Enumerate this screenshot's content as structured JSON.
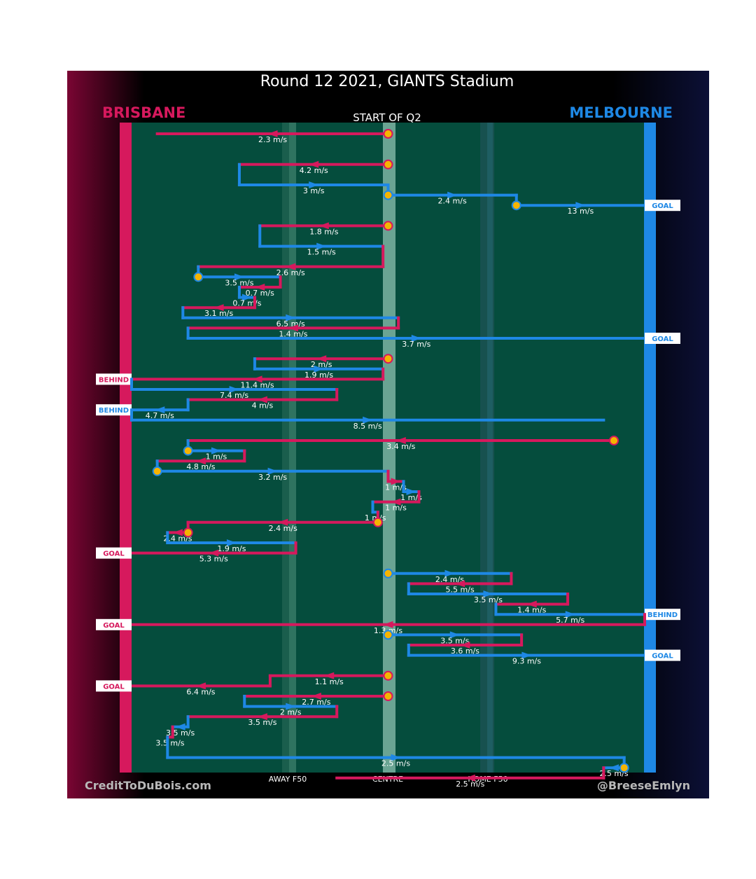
{
  "chart_data": {
    "type": "line",
    "title": "Round 12 2021, GIANTS Stadium",
    "subtitle": "START OF Q2",
    "teams": {
      "left": {
        "name": "BRISBANE",
        "color": "#d6195d"
      },
      "right": {
        "name": "MELBOURNE",
        "color": "#1e88e5"
      }
    },
    "field_labels": [
      "AWAY F50",
      "CENTRE",
      "HOME F50"
    ],
    "credits": {
      "left": "CreditToDuBois.com",
      "right": "@BreeseEmlyn"
    },
    "x_axis": {
      "note": "field position, 0 = Brisbane goal, 100 = Melbourne goal",
      "range": [
        0,
        100
      ]
    },
    "y_axis": {
      "note": "sequence step (row index, top to bottom)"
    },
    "speed_labels": [
      "2.3 m/s",
      "4.2 m/s",
      "3 m/s",
      "2.4 m/s",
      "13 m/s",
      "1.8 m/s",
      "1.5 m/s",
      "2.6 m/s",
      "3.5 m/s",
      "0.7 m/s",
      "3.1 m/s",
      "6.5 m/s",
      "1.4 m/s",
      "3.7 m/s",
      "2 m/s",
      "1.9 m/s",
      "11.4 m/s",
      "7.4 m/s",
      "4 m/s",
      "4.7 m/s",
      "8.5 m/s",
      "3.4 m/s",
      "1 m/s",
      "4.8 m/s",
      "3.2 m/s",
      "1 m/s",
      "2.4 m/s",
      "1.9 m/s",
      "5.3 m/s",
      "2.4 m/s",
      "5.5 m/s",
      "3.5 m/s",
      "1.4 m/s",
      "5.7 m/s",
      "1.3 m/s",
      "3.5 m/s",
      "3.6 m/s",
      "9.3 m/s",
      "1.1 m/s",
      "6.4 m/s",
      "2.7 m/s",
      "2 m/s",
      "3.5 m/s",
      "2.5 m/s",
      "2.5 m/s"
    ],
    "segments": [
      {
        "team": "BRI",
        "x1": 50,
        "x2": 5,
        "row": 1,
        "speed": "2.3 m/s",
        "start": "centre"
      },
      {
        "team": "BRI",
        "x1": 50,
        "x2": 21,
        "row": 4,
        "speed": "4.2 m/s",
        "bounce": true
      },
      {
        "team": "MEL",
        "x1": 21,
        "x2": 50,
        "row": 6,
        "speed": "3 m/s"
      },
      {
        "team": "MEL",
        "x1": 50,
        "x2": 75,
        "row": 7,
        "speed": "2.4 m/s",
        "bounce": true
      },
      {
        "team": "MEL",
        "x1": 75,
        "x2": 100,
        "row": 8,
        "speed": "13 m/s",
        "bounce": true,
        "result": "GOAL"
      },
      {
        "team": "BRI",
        "x1": 50,
        "x2": 25,
        "row": 10,
        "speed": "1.8 m/s",
        "bounce": true
      },
      {
        "team": "MEL",
        "x1": 25,
        "x2": 49,
        "row": 12,
        "speed": "1.5 m/s"
      },
      {
        "team": "BRI",
        "x1": 49,
        "x2": 13,
        "row": 14,
        "speed": "2.6 m/s"
      },
      {
        "team": "MEL",
        "x1": 13,
        "x2": 29,
        "row": 15,
        "speed": "3.5 m/s",
        "bounce": true
      },
      {
        "team": "BRI",
        "x1": 29,
        "x2": 21,
        "row": 16,
        "speed": "0.7 m/s"
      },
      {
        "team": "MEL",
        "x1": 21,
        "x2": 24,
        "row": 17,
        "speed": "0.7 m/s"
      },
      {
        "team": "BRI",
        "x1": 24,
        "x2": 10,
        "row": 18,
        "speed": "3.1 m/s"
      },
      {
        "team": "MEL",
        "x1": 10,
        "x2": 52,
        "row": 19,
        "speed": "6.5 m/s"
      },
      {
        "team": "BRI",
        "x1": 52,
        "x2": 11,
        "row": 20,
        "speed": "1.4 m/s"
      },
      {
        "team": "MEL",
        "x1": 11,
        "x2": 100,
        "row": 21,
        "speed": "3.7 m/s",
        "result": "GOAL"
      },
      {
        "team": "BRI",
        "x1": 50,
        "x2": 24,
        "row": 23,
        "speed": "2 m/s",
        "bounce": true
      },
      {
        "team": "MEL",
        "x1": 24,
        "x2": 49,
        "row": 24,
        "speed": "1.9 m/s"
      },
      {
        "team": "BRI",
        "x1": 49,
        "x2": 0,
        "row": 25,
        "speed": "11.4 m/s",
        "result": "BEHIND"
      },
      {
        "team": "MEL",
        "x1": 0,
        "x2": 40,
        "row": 26,
        "speed": "7.4 m/s"
      },
      {
        "team": "BRI",
        "x1": 40,
        "x2": 11,
        "row": 27,
        "speed": "4 m/s"
      },
      {
        "team": "MEL",
        "x1": 11,
        "x2": 0,
        "row": 28,
        "speed": "4.7 m/s",
        "result": "BEHIND"
      },
      {
        "team": "MEL",
        "x1": 0,
        "x2": 92,
        "row": 29,
        "speed": "8.5 m/s"
      },
      {
        "team": "BRI",
        "x1": 94,
        "x2": 11,
        "row": 31,
        "speed": "3.4 m/s",
        "bounce": true
      },
      {
        "team": "MEL",
        "x1": 11,
        "x2": 22,
        "row": 32,
        "speed": "1 m/s",
        "bounce": true
      },
      {
        "team": "BRI",
        "x1": 22,
        "x2": 5,
        "row": 33,
        "speed": "4.8 m/s"
      },
      {
        "team": "MEL",
        "x1": 5,
        "x2": 50,
        "row": 34,
        "speed": "3.2 m/s",
        "bounce": true
      },
      {
        "team": "BRI",
        "x1": 50,
        "x2": 53,
        "row": 35,
        "speed": "1 m/s"
      },
      {
        "team": "MEL",
        "x1": 53,
        "x2": 56,
        "row": 36,
        "speed": "1 m/s"
      },
      {
        "team": "BRI",
        "x1": 56,
        "x2": 47,
        "row": 37,
        "speed": "1 m/s"
      },
      {
        "team": "MEL",
        "x1": 47,
        "x2": 48,
        "row": 38,
        "speed": "1 m/s"
      },
      {
        "team": "BRI",
        "x1": 48,
        "x2": 11,
        "row": 39,
        "speed": "2.4 m/s",
        "bounce": true
      },
      {
        "team": "BRI",
        "x1": 11,
        "x2": 7,
        "row": 40,
        "speed": "2.4 m/s",
        "bounce": true
      },
      {
        "team": "MEL",
        "x1": 7,
        "x2": 32,
        "row": 41,
        "speed": "1.9 m/s"
      },
      {
        "team": "BRI",
        "x1": 32,
        "x2": 0,
        "row": 42,
        "speed": "5.3 m/s",
        "result": "GOAL"
      },
      {
        "team": "MEL",
        "x1": 50,
        "x2": 74,
        "row": 44,
        "speed": "2.4 m/s",
        "start": "centre"
      },
      {
        "team": "BRI",
        "x1": 74,
        "x2": 54,
        "row": 45,
        "speed": "5.5 m/s"
      },
      {
        "team": "MEL",
        "x1": 54,
        "x2": 85,
        "row": 46,
        "speed": "3.5 m/s"
      },
      {
        "team": "BRI",
        "x1": 85,
        "x2": 71,
        "row": 47,
        "speed": "1.4 m/s"
      },
      {
        "team": "MEL",
        "x1": 71,
        "x2": 100,
        "row": 48,
        "speed": "5.7 m/s",
        "result": "BEHIND"
      },
      {
        "team": "BRI",
        "x1": 100,
        "x2": 0,
        "row": 49,
        "speed": "1.3 m/s",
        "result": "GOAL"
      },
      {
        "team": "MEL",
        "x1": 50,
        "x2": 76,
        "row": 50,
        "speed": "3.5 m/s",
        "start": "centre"
      },
      {
        "team": "BRI",
        "x1": 76,
        "x2": 54,
        "row": 51,
        "speed": "3.6 m/s"
      },
      {
        "team": "MEL",
        "x1": 54,
        "x2": 100,
        "row": 52,
        "speed": "9.3 m/s",
        "result": "GOAL"
      },
      {
        "team": "BRI",
        "x1": 50,
        "x2": 27,
        "row": 54,
        "speed": "1.1 m/s",
        "start": "centre"
      },
      {
        "team": "BRI",
        "x1": 27,
        "x2": 0,
        "row": 55,
        "speed": "6.4 m/s",
        "result": "GOAL"
      },
      {
        "team": "BRI",
        "x1": 50,
        "x2": 22,
        "row": 56,
        "speed": "2.7 m/s",
        "start": "centre"
      },
      {
        "team": "MEL",
        "x1": 22,
        "x2": 40,
        "row": 57,
        "speed": "2 m/s"
      },
      {
        "team": "BRI",
        "x1": 40,
        "x2": 11,
        "row": 58,
        "speed": "3.5 m/s"
      },
      {
        "team": "MEL",
        "x1": 11,
        "x2": 8,
        "row": 59,
        "speed": "3.5 m/s"
      },
      {
        "team": "BRI",
        "x1": 8,
        "x2": 7,
        "row": 60,
        "speed": "3.5 m/s"
      },
      {
        "team": "MEL",
        "x1": 7,
        "x2": 96,
        "row": 62,
        "speed": "2.5 m/s"
      },
      {
        "team": "MEL",
        "x1": 96,
        "x2": 92,
        "row": 63,
        "speed": "2.5 m/s",
        "bounce": true
      },
      {
        "team": "BRI",
        "x1": 92,
        "x2": 40,
        "row": 64,
        "speed": "2.5 m/s"
      }
    ]
  }
}
